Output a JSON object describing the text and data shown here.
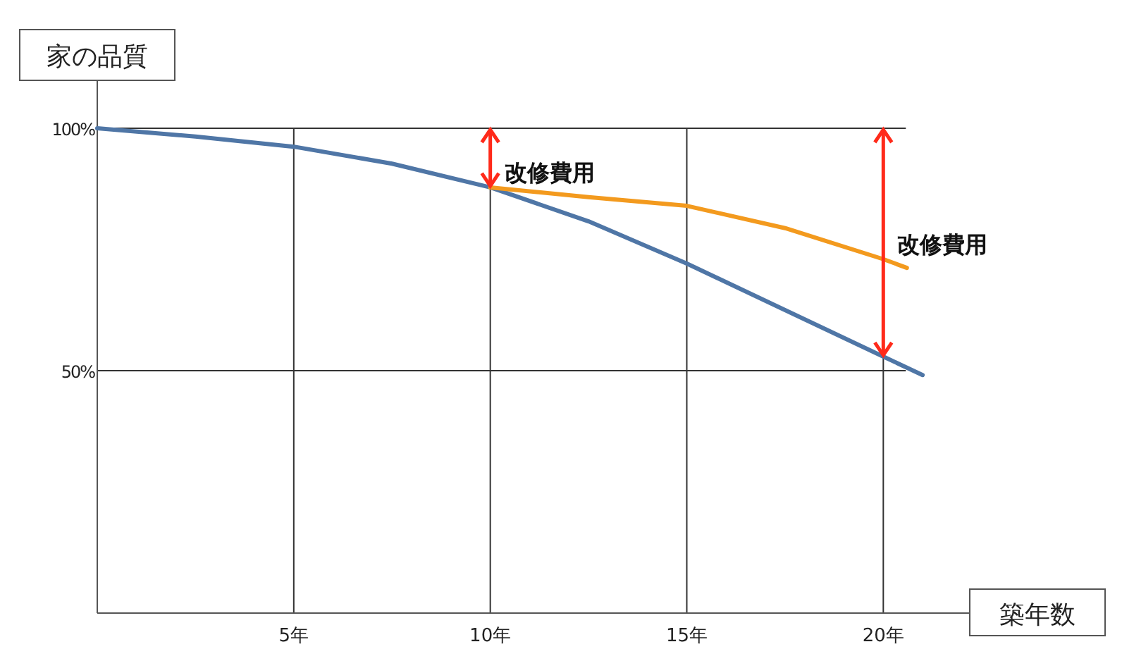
{
  "chart_data": {
    "type": "line",
    "ylabel": "家の品質",
    "xlabel": "築年数",
    "xlim": [
      0,
      22.2
    ],
    "ylim": [
      0,
      110
    ],
    "xticks": [
      {
        "value": 5,
        "label": "5年"
      },
      {
        "value": 10,
        "label": "10年"
      },
      {
        "value": 15,
        "label": "15年"
      },
      {
        "value": 20,
        "label": "20年"
      }
    ],
    "yticks": [
      {
        "value": 50,
        "label": "50%"
      },
      {
        "value": 100,
        "label": "100%"
      }
    ],
    "grid": true,
    "marker": "none",
    "line_style": "solid",
    "series": [
      {
        "color": "#4f76a6",
        "x": [
          0,
          2.5,
          5,
          7.5,
          10,
          12.5,
          15,
          17.5,
          20,
          21
        ],
        "values": [
          100,
          98.3,
          96.2,
          92.7,
          87.8,
          80.8,
          72.1,
          62.5,
          52.9,
          49.1
        ]
      },
      {
        "color": "#f39a1e",
        "x": [
          10,
          12.5,
          15,
          17.5,
          20,
          20.6
        ],
        "values": [
          87.8,
          85.8,
          84,
          79.4,
          73,
          71.2
        ]
      }
    ],
    "annotations": [
      {
        "text": "改修費用",
        "x": 10,
        "y": 87.8
      },
      {
        "text": "改修費用",
        "x": 20,
        "y": 73
      }
    ]
  }
}
